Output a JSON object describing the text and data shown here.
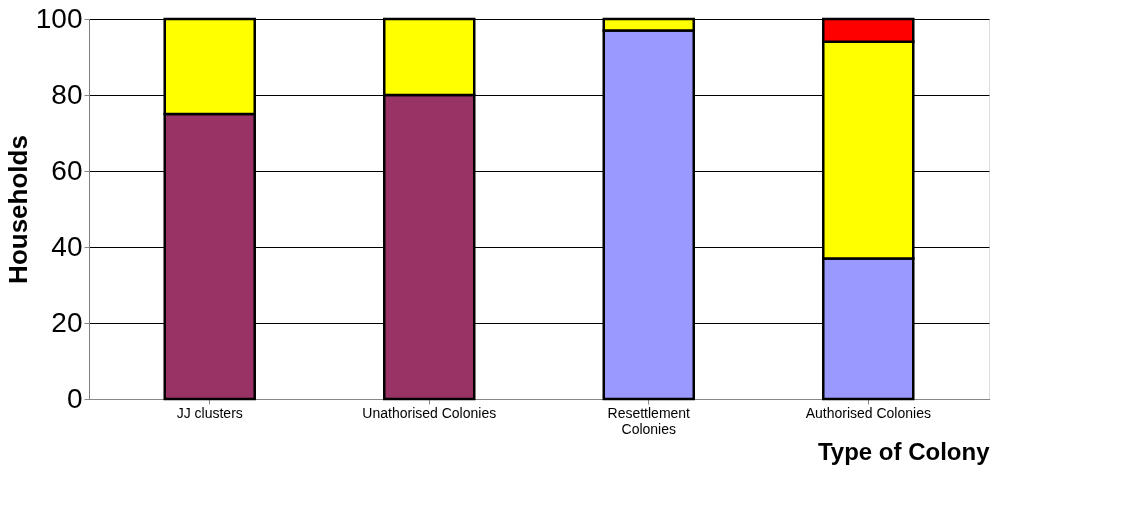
{
  "chart_data": {
    "type": "bar",
    "stacked": true,
    "xlabel": "Type of Colony",
    "ylabel": "Households",
    "categories": [
      "JJ clusters",
      "Unathorised Colonies",
      "Resettlement Colonies",
      "Authorised Colonies"
    ],
    "series": [
      {
        "color": "#993366",
        "values": [
          75,
          80,
          0,
          0
        ]
      },
      {
        "color": "#9999ff",
        "values": [
          0,
          0,
          97,
          37
        ]
      },
      {
        "color": "#ffff00",
        "values": [
          25,
          20,
          3,
          57
        ]
      },
      {
        "color": "#ff0000",
        "values": [
          0,
          0,
          0,
          6
        ]
      }
    ],
    "ylim": [
      0,
      100
    ],
    "yticks": [
      0,
      20,
      40,
      60,
      80,
      100
    ],
    "grid": "y"
  }
}
